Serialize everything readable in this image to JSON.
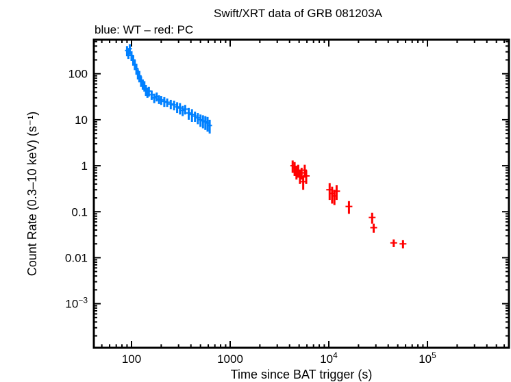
{
  "chart_data": {
    "type": "scatter",
    "title": "Swift/XRT data of GRB 081203A",
    "subtitle": "blue: WT – red: PC",
    "xlabel": "Time since BAT trigger (s)",
    "ylabel": "Count Rate (0.3–10 keV) (s⁻¹)",
    "xscale": "log",
    "yscale": "log",
    "xlim": [
      41.5,
      670000
    ],
    "ylim": [
      0.00011,
      550
    ],
    "grid": false,
    "x_ticks": [
      {
        "value": 100,
        "label": "100"
      },
      {
        "value": 1000,
        "label": "1000"
      },
      {
        "value": 10000,
        "label": "10",
        "exp": "4"
      },
      {
        "value": 100000,
        "label": "10",
        "exp": "5"
      }
    ],
    "y_ticks": [
      {
        "value": 100,
        "label": "100"
      },
      {
        "value": 10,
        "label": "10"
      },
      {
        "value": 1,
        "label": "1"
      },
      {
        "value": 0.1,
        "label": "0.1"
      },
      {
        "value": 0.01,
        "label": "0.01"
      },
      {
        "value": 0.001,
        "label": "10",
        "exp": "−3"
      }
    ],
    "series": [
      {
        "mode": "WT",
        "color": "#0080ff",
        "points": [
          [
            90,
            320,
            80
          ],
          [
            93,
            280,
            70
          ],
          [
            96,
            350,
            90
          ],
          [
            100,
            250,
            60
          ],
          [
            104,
            200,
            50
          ],
          [
            108,
            160,
            40
          ],
          [
            112,
            130,
            35
          ],
          [
            116,
            100,
            25
          ],
          [
            120,
            90,
            25
          ],
          [
            125,
            70,
            18
          ],
          [
            130,
            60,
            15
          ],
          [
            135,
            55,
            14
          ],
          [
            140,
            45,
            12
          ],
          [
            145,
            40,
            10
          ],
          [
            150,
            42,
            10
          ],
          [
            160,
            35,
            8
          ],
          [
            170,
            30,
            7
          ],
          [
            180,
            32,
            7
          ],
          [
            190,
            28,
            6
          ],
          [
            200,
            27,
            6
          ],
          [
            215,
            25,
            6
          ],
          [
            230,
            24,
            5
          ],
          [
            250,
            22,
            5
          ],
          [
            270,
            21,
            5
          ],
          [
            290,
            19,
            5
          ],
          [
            310,
            18,
            5
          ],
          [
            330,
            16,
            4
          ],
          [
            350,
            17,
            4
          ],
          [
            380,
            14,
            4
          ],
          [
            410,
            13,
            4
          ],
          [
            440,
            12,
            3
          ],
          [
            470,
            11,
            3
          ],
          [
            500,
            10,
            3
          ],
          [
            530,
            9.5,
            3
          ],
          [
            560,
            9,
            3
          ],
          [
            590,
            8.5,
            3
          ],
          [
            620,
            7.5,
            2.5
          ]
        ]
      },
      {
        "mode": "PC",
        "color": "#ff0000",
        "points": [
          [
            4300,
            1.0,
            0.3
          ],
          [
            4500,
            0.9,
            0.3
          ],
          [
            4700,
            0.75,
            0.25
          ],
          [
            4900,
            0.8,
            0.25
          ],
          [
            5100,
            0.6,
            0.2
          ],
          [
            5300,
            0.7,
            0.2
          ],
          [
            5500,
            0.45,
            0.15
          ],
          [
            5700,
            0.8,
            0.25
          ],
          [
            5900,
            0.6,
            0.2
          ],
          [
            10200,
            0.3,
            0.12
          ],
          [
            10800,
            0.25,
            0.1
          ],
          [
            11400,
            0.22,
            0.08
          ],
          [
            12000,
            0.28,
            0.1
          ],
          [
            16000,
            0.13,
            0.04
          ],
          [
            27500,
            0.075,
            0.02
          ],
          [
            28500,
            0.045,
            0.01
          ],
          [
            45500,
            0.021,
            0.004
          ],
          [
            56500,
            0.02,
            0.004
          ]
        ]
      }
    ]
  }
}
